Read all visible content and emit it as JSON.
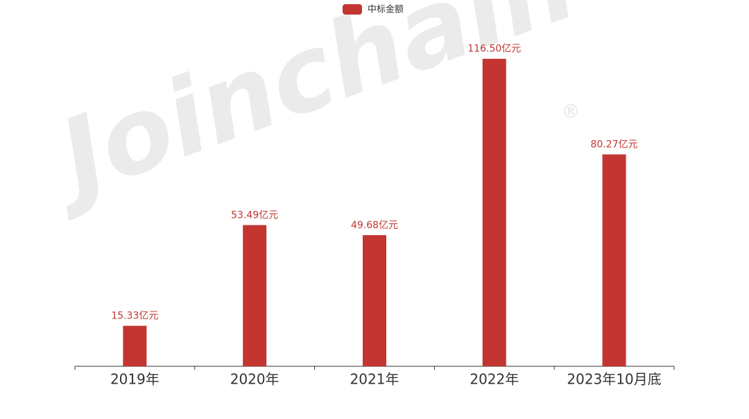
{
  "chart_data": {
    "type": "bar",
    "legend": "中标金额",
    "watermark": "Joinchain",
    "watermark_mark": "®",
    "categories": [
      "2019年",
      "2020年",
      "2021年",
      "2022年",
      "2023年10月底"
    ],
    "values": [
      15.33,
      53.49,
      49.68,
      116.5,
      80.27
    ],
    "value_labels": [
      "15.33亿元",
      "53.49亿元",
      "49.68亿元",
      "116.50亿元",
      "80.27亿元"
    ],
    "color": "#c23531",
    "ylim": [
      0,
      123
    ]
  }
}
